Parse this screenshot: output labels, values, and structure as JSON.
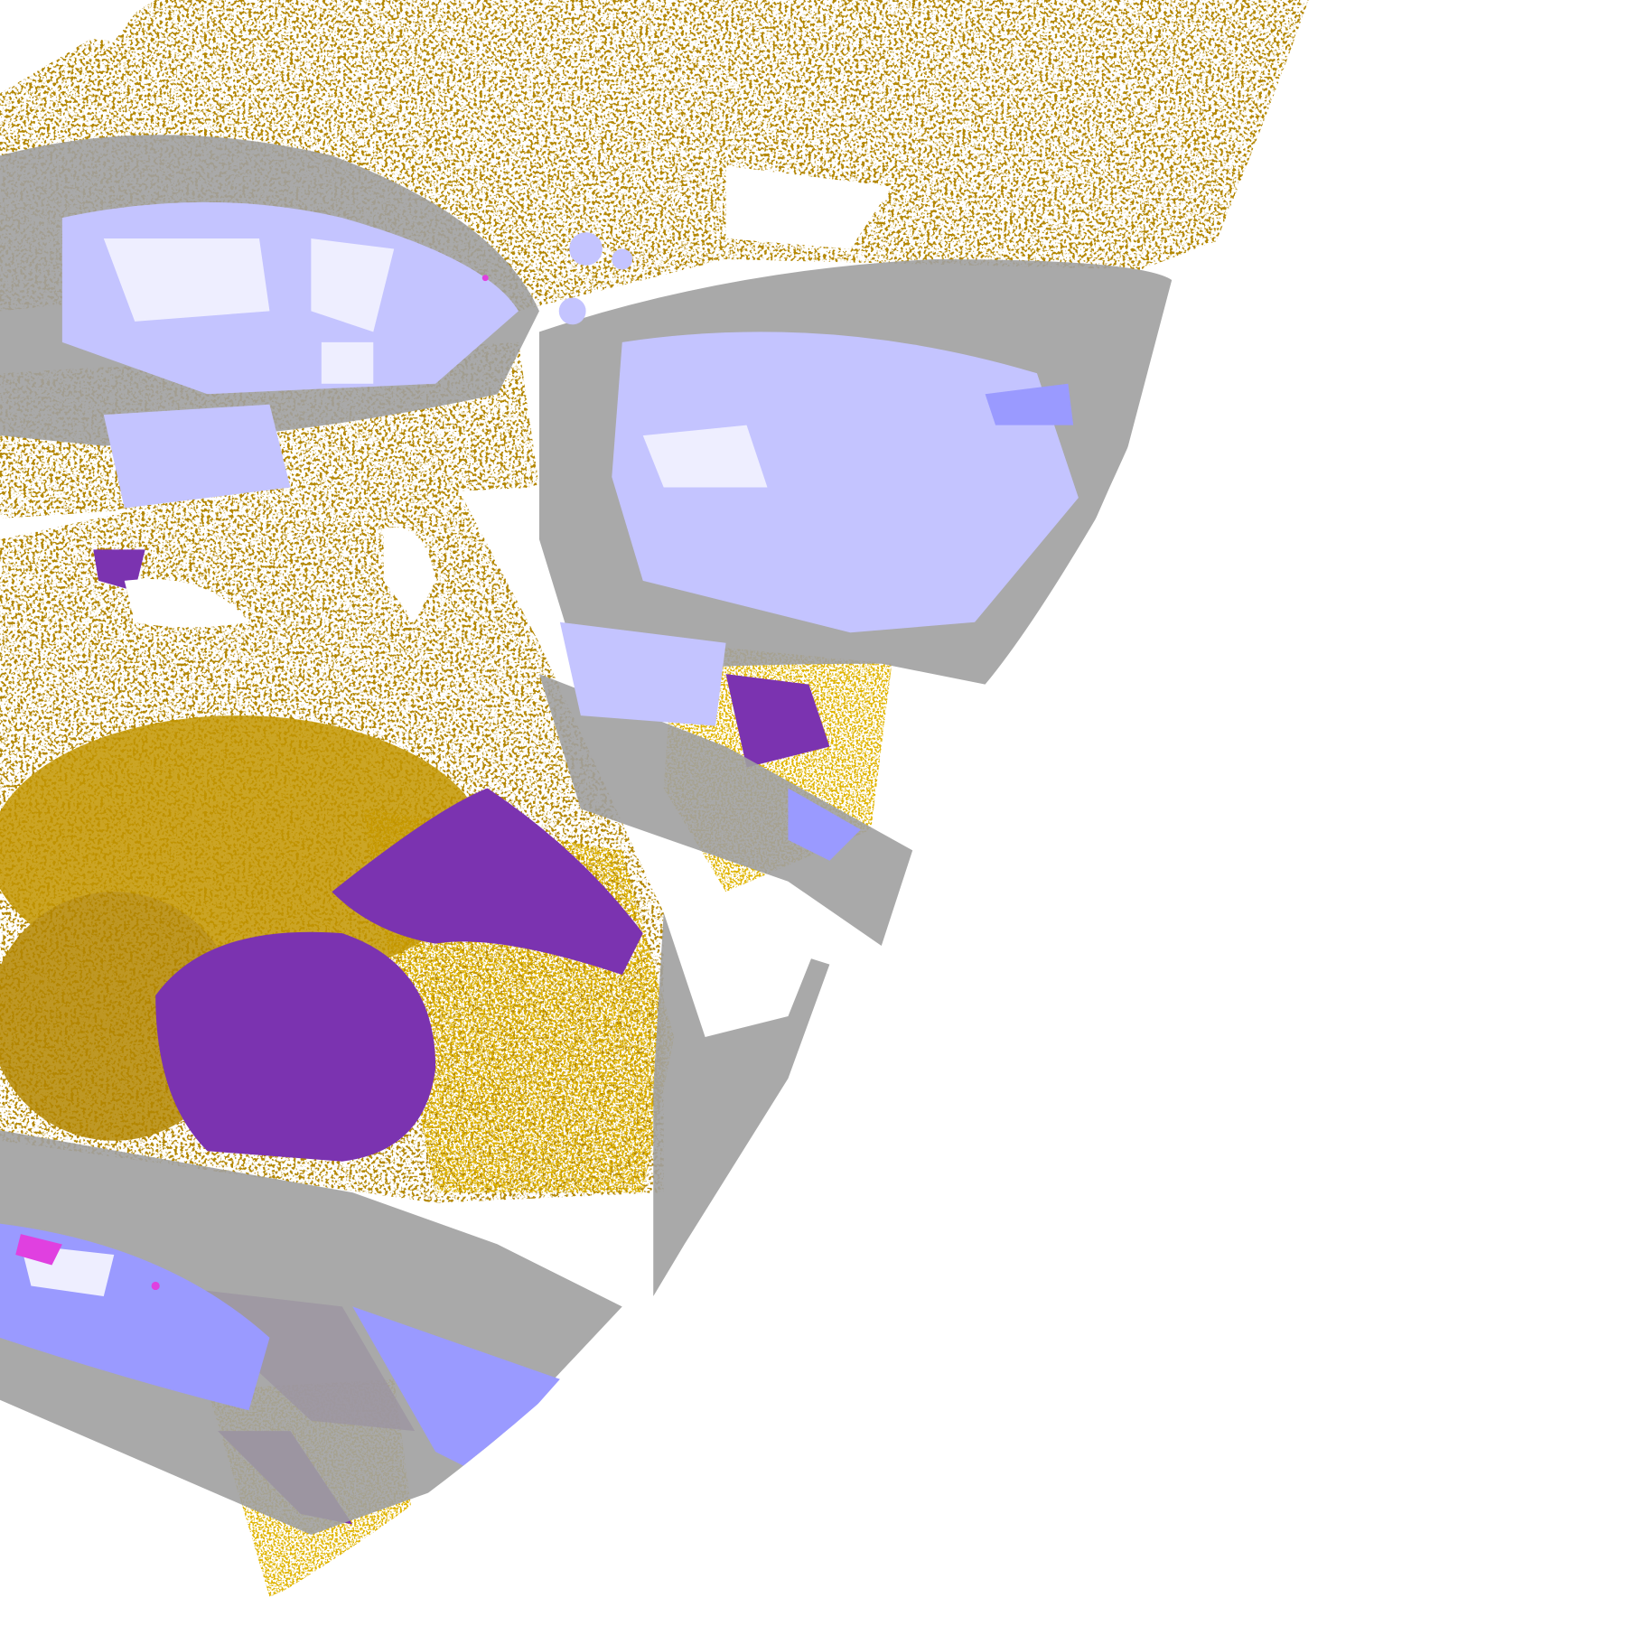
{
  "map": {
    "colors": {
      "background": "#ffffff",
      "gold_dark": "#b38600",
      "gold_bright": "#e0b400",
      "purple": "#7b33b0",
      "gray": "#a0a0a0",
      "lavender": "#c4c4ff",
      "periwinkle": "#9a9aff",
      "pale": "#eeeeff",
      "magenta": "#e040e0"
    }
  }
}
